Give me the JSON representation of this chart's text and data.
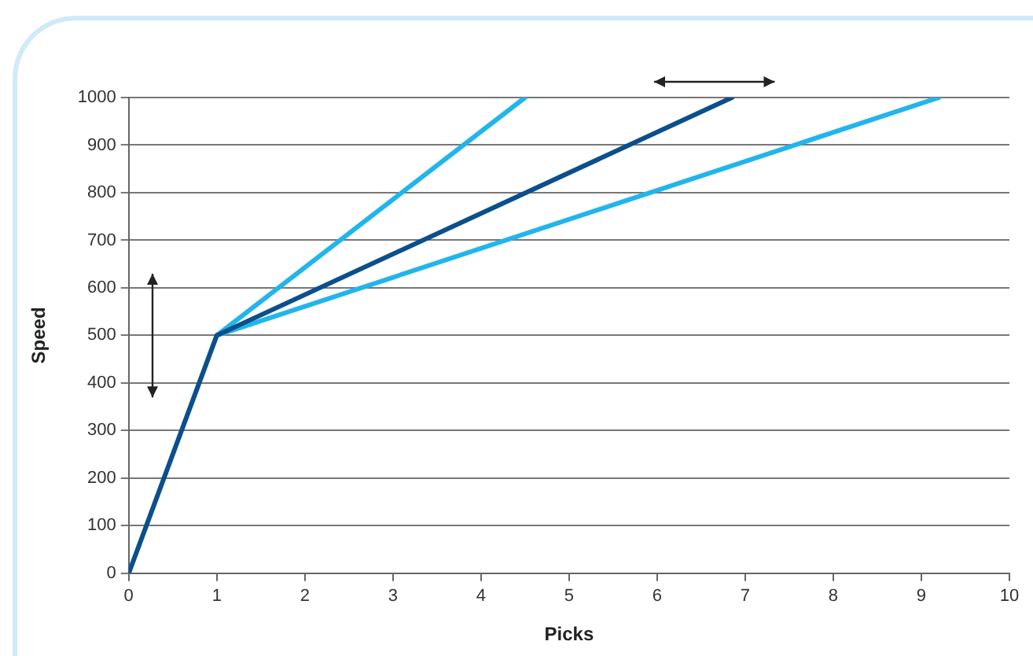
{
  "chart_data": {
    "type": "line",
    "xlabel": "Picks",
    "ylabel": "Speed",
    "xlim": [
      0,
      10
    ],
    "xticks": [
      0,
      1,
      2,
      3,
      4,
      5,
      6,
      7,
      8,
      9,
      10
    ],
    "ylim": [
      0,
      1000
    ],
    "yticks": [
      0,
      100,
      200,
      300,
      400,
      500,
      600,
      700,
      800,
      900,
      1000
    ],
    "grid": "y",
    "legend": false,
    "marker": "none",
    "line_style": "solid",
    "series": [
      {
        "color": "#0b4f8c",
        "x": [
          0,
          1,
          6.85
        ],
        "values": [
          0,
          500,
          1000
        ]
      },
      {
        "color": "#22b5ec",
        "x": [
          1,
          4.5
        ],
        "values": [
          500,
          1000
        ]
      },
      {
        "color": "#22b5ec",
        "x": [
          1,
          9.2
        ],
        "values": [
          500,
          1000
        ]
      }
    ]
  }
}
